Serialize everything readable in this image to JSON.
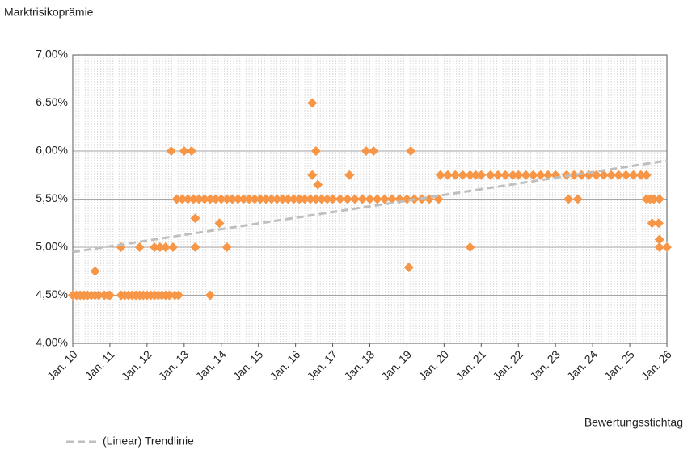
{
  "chart_data": {
    "type": "scatter",
    "y_label": "Marktrisikoprämie",
    "x_label": "Bewertungsstichtag",
    "color": "#f79646",
    "grid": true,
    "minor_x_grid": true,
    "xlim": [
      2010,
      2026
    ],
    "xticks": [
      {
        "value": 2010,
        "label": "Jan. 10"
      },
      {
        "value": 2011,
        "label": "Jan. 11"
      },
      {
        "value": 2012,
        "label": "Jan. 12"
      },
      {
        "value": 2013,
        "label": "Jan. 13"
      },
      {
        "value": 2014,
        "label": "Jan. 14"
      },
      {
        "value": 2015,
        "label": "Jan. 15"
      },
      {
        "value": 2016,
        "label": "Jan. 16"
      },
      {
        "value": 2017,
        "label": "Jan. 17"
      },
      {
        "value": 2018,
        "label": "Jan. 18"
      },
      {
        "value": 2019,
        "label": "Jan. 19"
      },
      {
        "value": 2020,
        "label": "Jan. 20"
      },
      {
        "value": 2021,
        "label": "Jan. 21"
      },
      {
        "value": 2022,
        "label": "Jan. 22"
      },
      {
        "value": 2023,
        "label": "Jan. 23"
      },
      {
        "value": 2024,
        "label": "Jan. 24"
      },
      {
        "value": 2025,
        "label": "Jan. 25"
      },
      {
        "value": 2026,
        "label": "Jan. 26"
      }
    ],
    "ylim": [
      4,
      7
    ],
    "yticks": [
      {
        "value": 4,
        "label": "4,00%"
      },
      {
        "value": 4.5,
        "label": "4,50%"
      },
      {
        "value": 5,
        "label": "5,00%"
      },
      {
        "value": 5.5,
        "label": "5,50%"
      },
      {
        "value": 6,
        "label": "6,00%"
      },
      {
        "value": 6.5,
        "label": "6,50%"
      },
      {
        "value": 7,
        "label": "7,00%"
      }
    ],
    "x": [
      2010.0,
      2010.1,
      2010.2,
      2010.3,
      2010.4,
      2010.5,
      2010.6,
      2010.7,
      2010.85,
      2010.95,
      2011.0,
      2011.3,
      2011.4,
      2011.5,
      2011.6,
      2011.7,
      2011.8,
      2011.9,
      2012.0,
      2012.1,
      2012.2,
      2012.3,
      2012.4,
      2012.5,
      2012.6,
      2012.75,
      2012.85,
      2013.7,
      2012.8,
      2012.95,
      2013.1,
      2013.25,
      2013.4,
      2013.55,
      2013.7,
      2013.85,
      2014.0,
      2014.15,
      2014.3,
      2014.45,
      2014.6,
      2014.75,
      2014.9,
      2015.05,
      2015.2,
      2015.35,
      2015.5,
      2015.65,
      2015.8,
      2015.95,
      2016.1,
      2016.25,
      2016.4,
      2016.55,
      2016.7,
      2016.85,
      2017.0,
      2017.2,
      2017.4,
      2017.6,
      2017.8,
      2018.0,
      2018.2,
      2018.4,
      2018.6,
      2018.8,
      2019.0,
      2019.2,
      2019.4,
      2019.6,
      2019.85,
      2023.35,
      2023.6,
      2025.45,
      2025.55,
      2025.65,
      2025.8,
      2019.9,
      2020.1,
      2020.3,
      2020.5,
      2020.7,
      2020.85,
      2021.0,
      2021.25,
      2021.45,
      2021.65,
      2021.85,
      2022.0,
      2022.2,
      2022.4,
      2022.6,
      2022.8,
      2023.0,
      2023.3,
      2023.5,
      2023.7,
      2023.9,
      2024.1,
      2024.3,
      2024.5,
      2024.7,
      2024.9,
      2025.1,
      2025.3,
      2025.45,
      2016.45,
      2017.45,
      2010.6,
      2011.3,
      2011.8,
      2012.2,
      2012.35,
      2012.5,
      2012.7,
      2013.3,
      2014.15,
      2020.7,
      2025.8,
      2026.0,
      2025.8,
      2012.65,
      2013.0,
      2013.2,
      2013.3,
      2013.95,
      2025.6,
      2025.78,
      2016.45,
      2016.55,
      2017.9,
      2018.1,
      2019.1,
      2016.6,
      2019.05
    ],
    "values": [
      4.5,
      4.5,
      4.5,
      4.5,
      4.5,
      4.5,
      4.5,
      4.5,
      4.5,
      4.5,
      4.5,
      4.5,
      4.5,
      4.5,
      4.5,
      4.5,
      4.5,
      4.5,
      4.5,
      4.5,
      4.5,
      4.5,
      4.5,
      4.5,
      4.5,
      4.5,
      4.5,
      4.5,
      5.5,
      5.5,
      5.5,
      5.5,
      5.5,
      5.5,
      5.5,
      5.5,
      5.5,
      5.5,
      5.5,
      5.5,
      5.5,
      5.5,
      5.5,
      5.5,
      5.5,
      5.5,
      5.5,
      5.5,
      5.5,
      5.5,
      5.5,
      5.5,
      5.5,
      5.5,
      5.5,
      5.5,
      5.5,
      5.5,
      5.5,
      5.5,
      5.5,
      5.5,
      5.5,
      5.5,
      5.5,
      5.5,
      5.5,
      5.5,
      5.5,
      5.5,
      5.5,
      5.5,
      5.5,
      5.5,
      5.5,
      5.5,
      5.5,
      5.75,
      5.75,
      5.75,
      5.75,
      5.75,
      5.75,
      5.75,
      5.75,
      5.75,
      5.75,
      5.75,
      5.75,
      5.75,
      5.75,
      5.75,
      5.75,
      5.75,
      5.75,
      5.75,
      5.75,
      5.75,
      5.75,
      5.75,
      5.75,
      5.75,
      5.75,
      5.75,
      5.75,
      5.75,
      5.75,
      5.75,
      4.75,
      5.0,
      5.0,
      5.0,
      5.0,
      5.0,
      5.0,
      5.0,
      5.0,
      5.0,
      5.0,
      5.0,
      5.08,
      6.0,
      6.0,
      6.0,
      5.3,
      5.25,
      5.25,
      5.25,
      6.5,
      6.0,
      6.0,
      6.0,
      6.0,
      5.65,
      4.79
    ],
    "trendline": {
      "name": "(Linear) Trendlinie",
      "color": "#bfbfbf",
      "x": [
        2010,
        2026
      ],
      "values": [
        4.95,
        5.9
      ]
    }
  }
}
